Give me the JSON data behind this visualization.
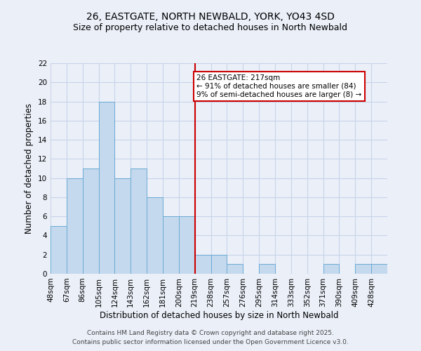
{
  "title": "26, EASTGATE, NORTH NEWBALD, YORK, YO43 4SD",
  "subtitle": "Size of property relative to detached houses in North Newbald",
  "xlabel": "Distribution of detached houses by size in North Newbald",
  "ylabel": "Number of detached properties",
  "bin_edges": [
    48,
    67,
    86,
    105,
    124,
    143,
    162,
    181,
    200,
    219,
    238,
    257,
    276,
    295,
    314,
    333,
    352,
    371,
    390,
    409,
    428,
    447
  ],
  "counts": [
    5,
    10,
    11,
    18,
    10,
    11,
    8,
    6,
    6,
    2,
    2,
    1,
    0,
    1,
    0,
    0,
    0,
    1,
    0,
    1,
    1
  ],
  "bar_color": "#c5d9ee",
  "bar_edgecolor": "#6aaad4",
  "vline_x": 219,
  "vline_color": "#cc0000",
  "annotation_title": "26 EASTGATE: 217sqm",
  "annotation_line1": "← 91% of detached houses are smaller (84)",
  "annotation_line2": "9% of semi-detached houses are larger (8) →",
  "annotation_box_color": "white",
  "annotation_box_edgecolor": "#cc0000",
  "ylim": [
    0,
    22
  ],
  "yticks": [
    0,
    2,
    4,
    6,
    8,
    10,
    12,
    14,
    16,
    18,
    20,
    22
  ],
  "xtick_labels": [
    "48sqm",
    "67sqm",
    "86sqm",
    "105sqm",
    "124sqm",
    "143sqm",
    "162sqm",
    "181sqm",
    "200sqm",
    "219sqm",
    "238sqm",
    "257sqm",
    "276sqm",
    "295sqm",
    "314sqm",
    "333sqm",
    "352sqm",
    "371sqm",
    "390sqm",
    "409sqm",
    "428sqm"
  ],
  "background_color": "#eaeff8",
  "grid_color": "#c8d4e8",
  "footer_line1": "Contains HM Land Registry data © Crown copyright and database right 2025.",
  "footer_line2": "Contains public sector information licensed under the Open Government Licence v3.0.",
  "title_fontsize": 10,
  "subtitle_fontsize": 9,
  "axis_label_fontsize": 8.5,
  "tick_fontsize": 7.5,
  "footer_fontsize": 6.5
}
